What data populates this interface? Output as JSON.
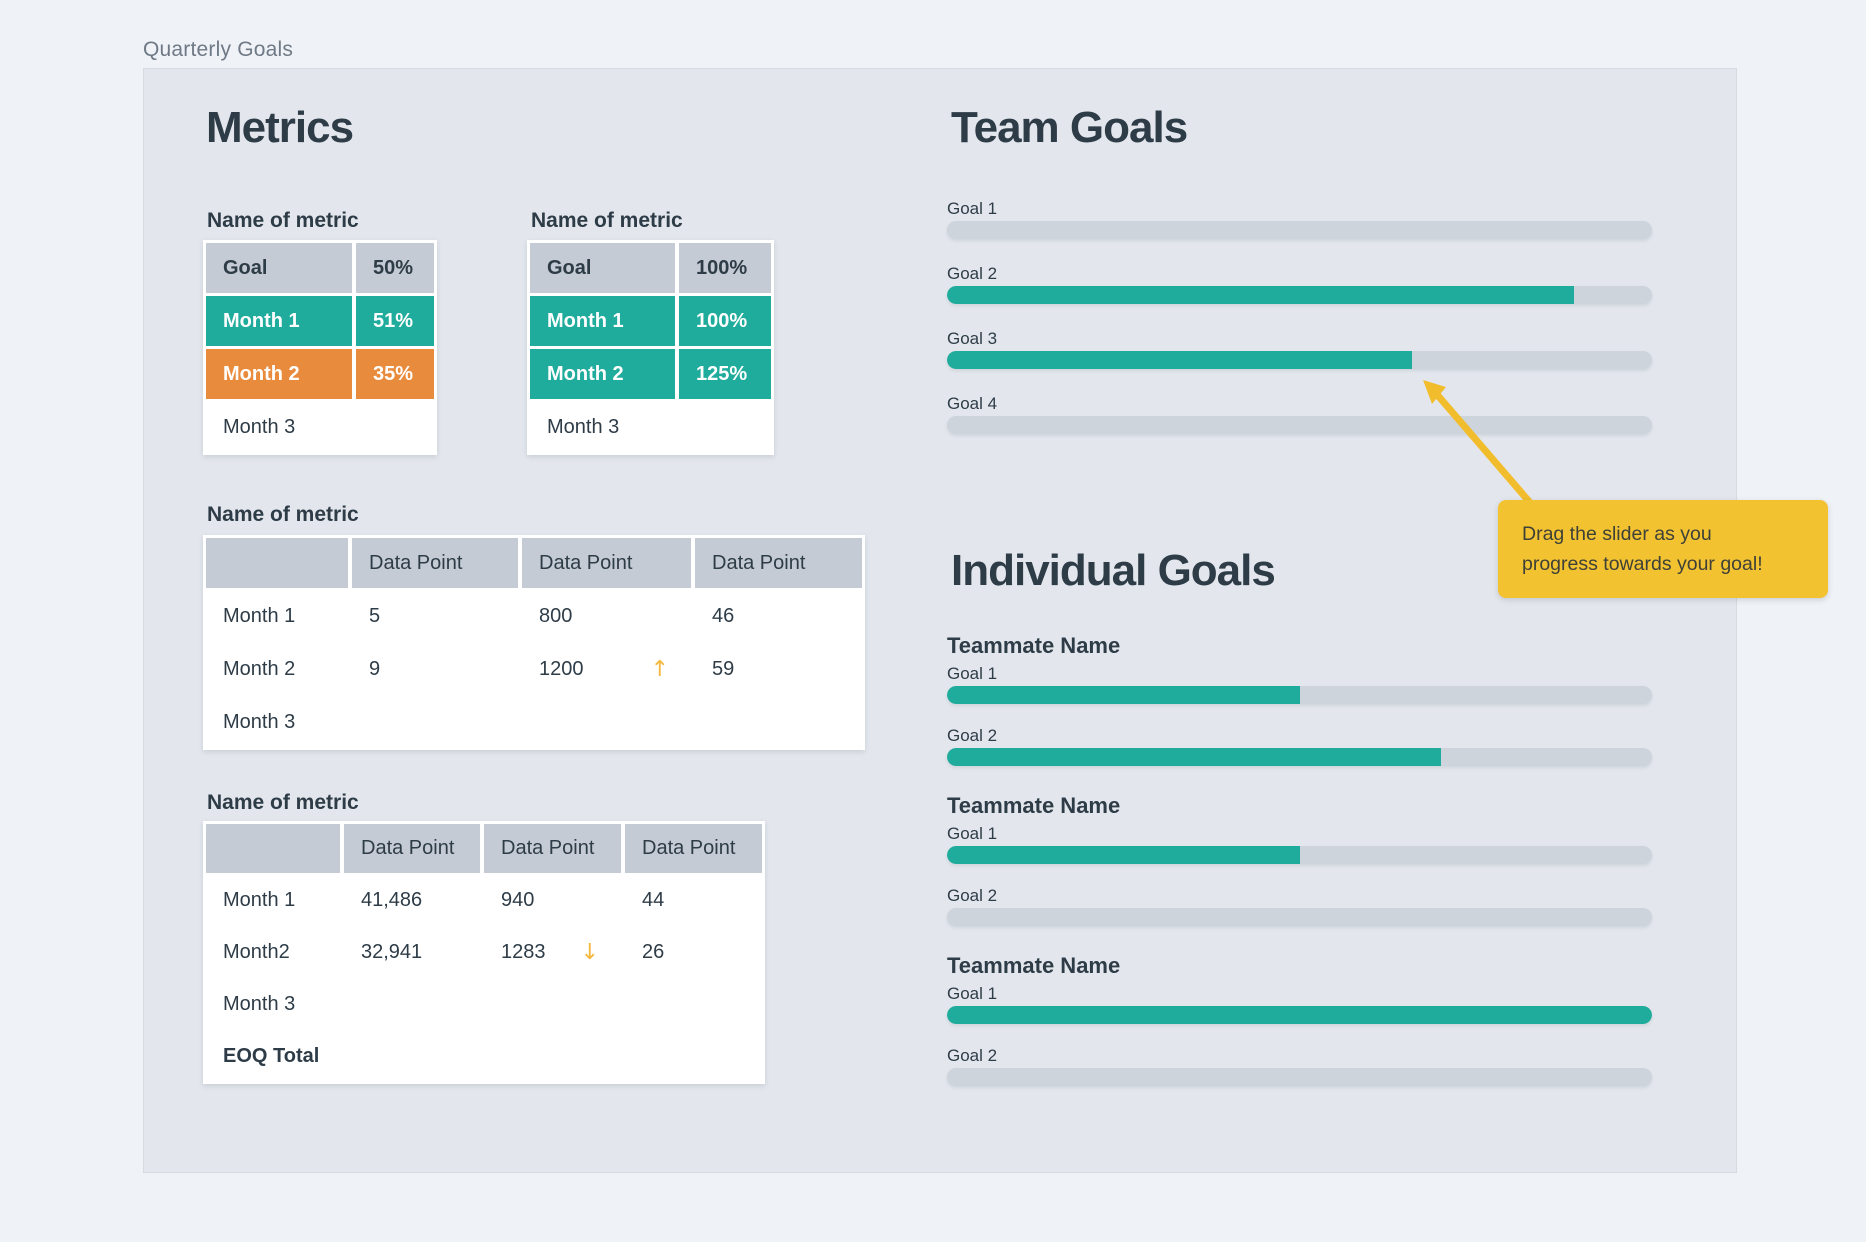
{
  "page_title": "Quarterly Goals",
  "metrics": {
    "heading": "Metrics",
    "small_tables": [
      {
        "label": "Name of metric",
        "header": {
          "name": "Goal",
          "value": "50%"
        },
        "rows": [
          {
            "name": "Month 1",
            "value": "51%",
            "state": "success"
          },
          {
            "name": "Month 2",
            "value": "35%",
            "state": "warning"
          },
          {
            "name": "Month 3",
            "value": "",
            "state": "empty"
          }
        ]
      },
      {
        "label": "Name of metric",
        "header": {
          "name": "Goal",
          "value": "100%"
        },
        "rows": [
          {
            "name": "Month 1",
            "value": "100%",
            "state": "success"
          },
          {
            "name": "Month 2",
            "value": "125%",
            "state": "success"
          },
          {
            "name": "Month 3",
            "value": "",
            "state": "empty"
          }
        ]
      }
    ],
    "data_tables": [
      {
        "label": "Name of metric",
        "columns": [
          "Data Point",
          "Data Point",
          "Data Point"
        ],
        "rows": [
          {
            "name": "Month 1",
            "cells": [
              {
                "value": "5"
              },
              {
                "value": "800",
                "trend": ""
              },
              {
                "value": "46"
              }
            ]
          },
          {
            "name": "Month 2",
            "cells": [
              {
                "value": "9"
              },
              {
                "value": "1200",
                "trend": "up"
              },
              {
                "value": "59"
              }
            ]
          },
          {
            "name": "Month 3",
            "cells": [
              {
                "value": ""
              },
              {
                "value": "",
                "trend": ""
              },
              {
                "value": ""
              }
            ]
          }
        ]
      },
      {
        "label": "Name of metric",
        "columns": [
          "Data Point",
          "Data Point",
          "Data Point"
        ],
        "rows": [
          {
            "name": "Month 1",
            "cells": [
              {
                "value": "41,486"
              },
              {
                "value": "940",
                "trend": ""
              },
              {
                "value": "44"
              }
            ]
          },
          {
            "name": "Month2",
            "cells": [
              {
                "value": "32,941"
              },
              {
                "value": "1283",
                "trend": "down"
              },
              {
                "value": "26"
              }
            ]
          },
          {
            "name": "Month 3",
            "cells": [
              {
                "value": ""
              },
              {
                "value": "",
                "trend": ""
              },
              {
                "value": ""
              }
            ]
          },
          {
            "name": "EOQ Total",
            "cells": [
              {
                "value": ""
              },
              {
                "value": "",
                "trend": ""
              },
              {
                "value": ""
              }
            ]
          }
        ]
      }
    ]
  },
  "team_goals": {
    "heading": "Team Goals",
    "goals": [
      {
        "label": "Goal 1",
        "progress": 0
      },
      {
        "label": "Goal 2",
        "progress": 89
      },
      {
        "label": "Goal 3",
        "progress": 66
      },
      {
        "label": "Goal 4",
        "progress": 0
      }
    ]
  },
  "individual_goals": {
    "heading": "Individual Goals",
    "teammates": [
      {
        "name": "Teammate Name",
        "goals": [
          {
            "label": "Goal 1",
            "progress": 50
          },
          {
            "label": "Goal 2",
            "progress": 70
          }
        ]
      },
      {
        "name": "Teammate Name",
        "goals": [
          {
            "label": "Goal 1",
            "progress": 50
          },
          {
            "label": "Goal 2",
            "progress": 0
          }
        ]
      },
      {
        "name": "Teammate Name",
        "goals": [
          {
            "label": "Goal 1",
            "progress": 100
          },
          {
            "label": "Goal 2",
            "progress": 0
          }
        ]
      }
    ]
  },
  "tooltip": {
    "line1": "Drag the slider as you",
    "line2": "progress towards your goal!"
  },
  "icons": {
    "trend_up": "↑",
    "trend_down": "↓"
  },
  "colors": {
    "accent_teal": "#1FAC9C",
    "accent_orange": "#E98B3D",
    "track_gray": "#CED4DC",
    "tooltip_yellow": "#F3C231",
    "heading_dark": "#2E3C47"
  }
}
